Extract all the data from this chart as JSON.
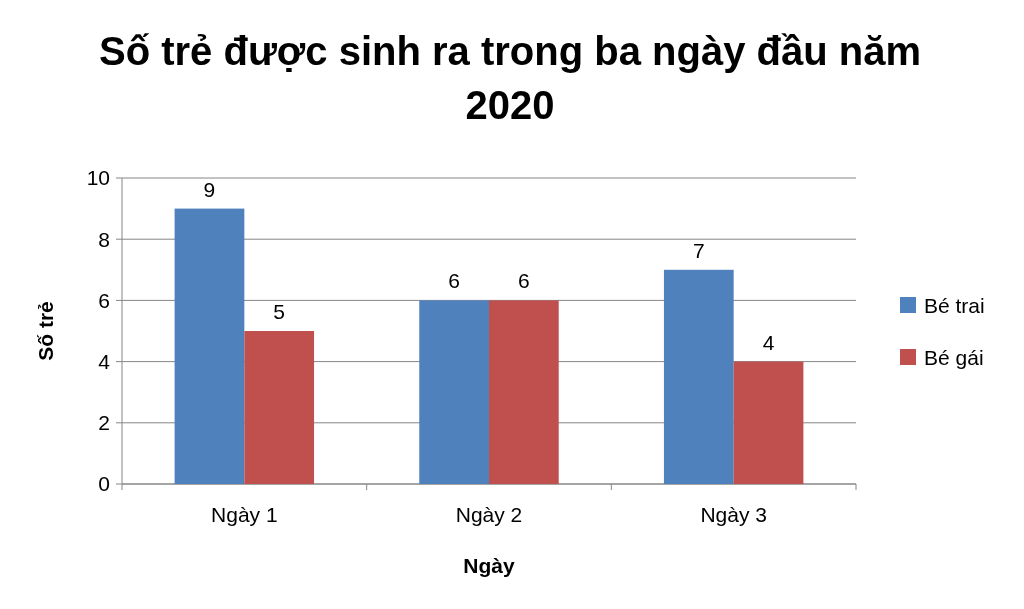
{
  "chart_data": {
    "type": "bar",
    "title": "Số trẻ được sinh ra trong ba ngày đầu năm 2020",
    "xlabel": "Ngày",
    "ylabel": "Số trẻ",
    "categories": [
      "Ngày 1",
      "Ngày 2",
      "Ngày 3"
    ],
    "series": [
      {
        "name": "Bé trai",
        "color": "#4f81bd",
        "values": [
          9,
          6,
          7
        ]
      },
      {
        "name": "Bé gái",
        "color": "#c0504d",
        "values": [
          5,
          6,
          4
        ]
      }
    ],
    "ylim": [
      0,
      10
    ],
    "yticks": [
      0,
      2,
      4,
      6,
      8,
      10
    ],
    "grid": "y",
    "legend": "right",
    "data_labels": true
  }
}
